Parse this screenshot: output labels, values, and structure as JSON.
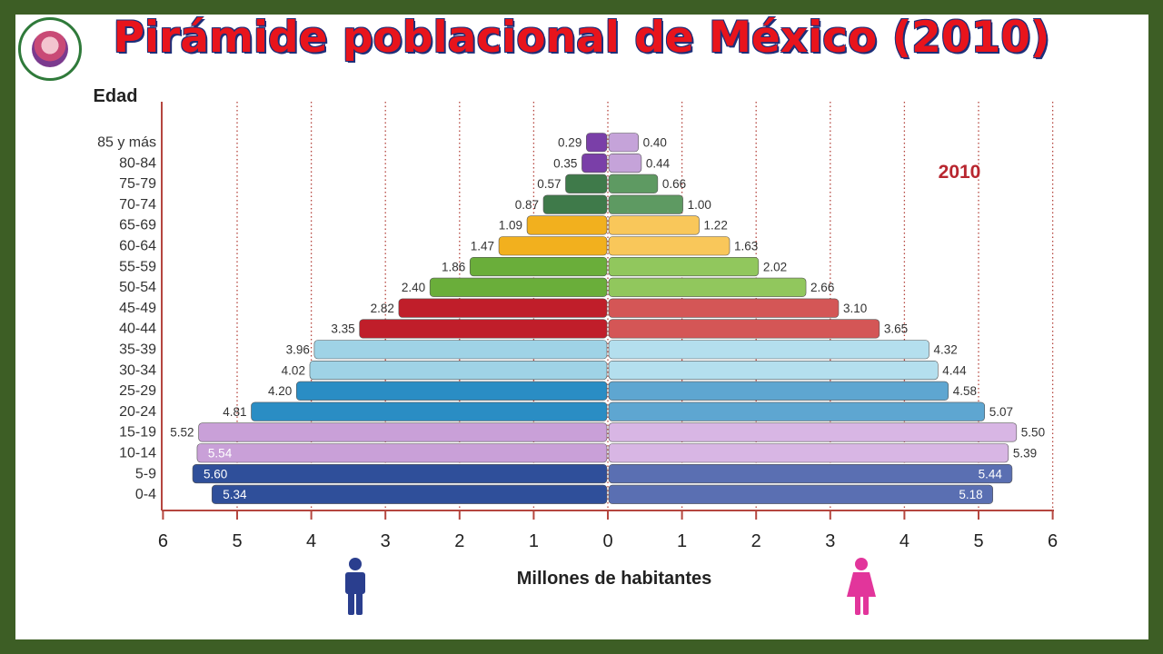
{
  "title": "Pirámide poblacional de México (2010)",
  "logo": {
    "icon": "school-logo-icon"
  },
  "chart_data": {
    "type": "bar",
    "orientation": "horizontal-population-pyramid",
    "year_label": "2010",
    "ylabel": "Edad",
    "xlabel": "Millones de habitantes",
    "xlim": [
      0,
      6
    ],
    "x_ticks": [
      "6",
      "5",
      "4",
      "3",
      "2",
      "1",
      "0",
      "1",
      "2",
      "3",
      "4",
      "5",
      "6"
    ],
    "grid": "vertical-dotted",
    "categories": [
      "85 y más",
      "80-84",
      "75-79",
      "70-74",
      "65-69",
      "60-64",
      "55-59",
      "50-54",
      "45-49",
      "40-44",
      "35-39",
      "30-34",
      "25-29",
      "20-24",
      "15-19",
      "10-14",
      "5-9",
      "0-4"
    ],
    "series": [
      {
        "side": "left",
        "icon": "male-figure-icon",
        "values": [
          0.29,
          0.35,
          0.57,
          0.87,
          1.09,
          1.47,
          1.86,
          2.4,
          2.82,
          3.35,
          3.96,
          4.02,
          4.2,
          4.81,
          5.52,
          5.54,
          5.6,
          5.34
        ]
      },
      {
        "side": "right",
        "icon": "female-figure-icon",
        "values": [
          0.4,
          0.44,
          0.66,
          1.0,
          1.22,
          1.63,
          2.02,
          2.66,
          3.1,
          3.65,
          4.32,
          4.44,
          4.58,
          5.07,
          5.5,
          5.39,
          5.44,
          5.18
        ]
      }
    ],
    "value_labels_left": [
      "0.29",
      "0.35",
      "0.57",
      "0.87",
      "1.09",
      "1.47",
      "1.86",
      "2.40",
      "2.82",
      "3.35",
      "3.96",
      "4.02",
      "4.20",
      "4.81",
      "5.52",
      "5.54",
      "5.60",
      "5.34"
    ],
    "value_labels_right": [
      "0.40",
      "0.44",
      "0.66",
      "1.00",
      "1.22",
      "1.63",
      "2.02",
      "2.66",
      "3.10",
      "3.65",
      "4.32",
      "4.44",
      "4.58",
      "5.07",
      "5.50",
      "5.39",
      "5.44",
      "5.18"
    ],
    "colors": {
      "left": [
        "#7a3fa8",
        "#7a3fa8",
        "#3f7a4a",
        "#3f7a4a",
        "#f2b01e",
        "#f2b01e",
        "#6aae3a",
        "#6aae3a",
        "#c01e2a",
        "#c01e2a",
        "#9fd3e6",
        "#9fd3e6",
        "#2a8dc4",
        "#2a8dc4",
        "#c9a0d8",
        "#c9a0d8",
        "#2f4f9a",
        "#2f4f9a"
      ],
      "right": [
        "#c5a3d9",
        "#c5a3d9",
        "#5e9a62",
        "#5e9a62",
        "#f9c75a",
        "#f9c75a",
        "#91c75d",
        "#91c75d",
        "#d45656",
        "#d45656",
        "#b4dfee",
        "#b4dfee",
        "#5ea6d1",
        "#5ea6d1",
        "#d8b6e4",
        "#d8b6e4",
        "#5a6fb2",
        "#5a6fb2"
      ],
      "axis": "#b5463f",
      "male_icon": "#2a3e8e",
      "female_icon": "#e2359b"
    }
  }
}
